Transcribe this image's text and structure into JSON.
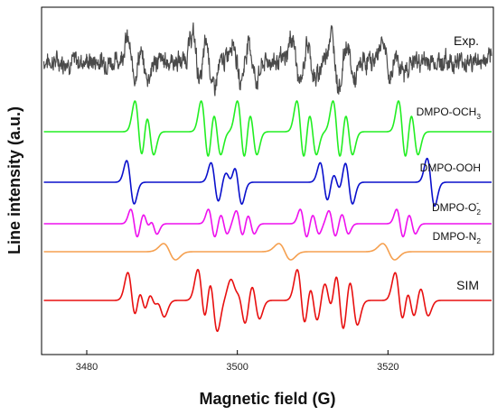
{
  "chart_data": {
    "type": "line",
    "title": "",
    "xlabel": "Magnetic field (G)",
    "ylabel": "Line intensity (a.u.)",
    "xlim": [
      3474,
      3534
    ],
    "xticks": [
      3480,
      3500,
      3520
    ],
    "xtick_labels": [
      "3480",
      "3500",
      "3520"
    ],
    "grid": false,
    "legend": "none",
    "series": [
      {
        "name": "Exp.",
        "label_sub": "",
        "color": "#4a4a4a",
        "noisy": true,
        "lines": [
          {
            "center": 3485.9,
            "width": 0.55,
            "amp": 0.8
          },
          {
            "center": 3487.5,
            "width": 0.55,
            "amp": 0.6
          },
          {
            "center": 3494.6,
            "width": 0.55,
            "amp": 1.0
          },
          {
            "center": 3496.3,
            "width": 0.55,
            "amp": 1.0
          },
          {
            "center": 3499.9,
            "width": 0.55,
            "amp": 0.8
          },
          {
            "center": 3502.0,
            "width": 0.55,
            "amp": 0.7
          },
          {
            "center": 3507.8,
            "width": 0.55,
            "amp": 0.9
          },
          {
            "center": 3509.8,
            "width": 0.55,
            "amp": 0.7
          },
          {
            "center": 3513.0,
            "width": 0.55,
            "amp": 1.0
          },
          {
            "center": 3515.0,
            "width": 0.55,
            "amp": 0.7
          },
          {
            "center": 3519.8,
            "width": 0.55,
            "amp": 0.8
          },
          {
            "center": 3521.5,
            "width": 0.55,
            "amp": 0.5
          }
        ]
      },
      {
        "name": "DMPO-OCH",
        "label_sub": "3",
        "color": "#22ee22",
        "noisy": false,
        "lines": [
          {
            "center": 3486.9,
            "width": 0.5,
            "amp": 1.0
          },
          {
            "center": 3488.4,
            "width": 0.5,
            "amp": 0.75
          },
          {
            "center": 3495.7,
            "width": 0.5,
            "amp": 1.0
          },
          {
            "center": 3497.3,
            "width": 0.5,
            "amp": 0.75
          },
          {
            "center": 3500.5,
            "width": 0.5,
            "amp": 1.0
          },
          {
            "center": 3502.1,
            "width": 0.5,
            "amp": 0.75
          },
          {
            "center": 3508.4,
            "width": 0.5,
            "amp": 1.0
          },
          {
            "center": 3510.0,
            "width": 0.5,
            "amp": 0.75
          },
          {
            "center": 3513.2,
            "width": 0.5,
            "amp": 1.0
          },
          {
            "center": 3514.8,
            "width": 0.5,
            "amp": 0.75
          },
          {
            "center": 3521.9,
            "width": 0.5,
            "amp": 1.0
          },
          {
            "center": 3523.5,
            "width": 0.5,
            "amp": 0.75
          }
        ]
      },
      {
        "name": "DMPO-OOH",
        "label_sub": "",
        "color": "#0a10cc",
        "noisy": false,
        "lines": [
          {
            "center": 3485.8,
            "width": 0.5,
            "amp": 1.0
          },
          {
            "center": 3497.0,
            "width": 0.5,
            "amp": 0.9
          },
          {
            "center": 3498.9,
            "width": 0.5,
            "amp": 0.45
          },
          {
            "center": 3500.1,
            "width": 0.5,
            "amp": 1.0
          },
          {
            "center": 3511.5,
            "width": 0.5,
            "amp": 0.9
          },
          {
            "center": 3513.2,
            "width": 0.5,
            "amp": 0.45
          },
          {
            "center": 3514.8,
            "width": 0.5,
            "amp": 1.0
          },
          {
            "center": 3525.7,
            "width": 0.5,
            "amp": 1.1
          }
        ]
      },
      {
        "name": "DMPO-O",
        "label_sub": "2",
        "label_sup": "-",
        "color": "#ee11ee",
        "noisy": false,
        "lines": [
          {
            "center": 3486.3,
            "width": 0.45,
            "amp": 1.0
          },
          {
            "center": 3487.9,
            "width": 0.45,
            "amp": 0.7
          },
          {
            "center": 3488.9,
            "width": 0.45,
            "amp": 0.7
          },
          {
            "center": 3496.6,
            "width": 0.45,
            "amp": 1.0
          },
          {
            "center": 3498.2,
            "width": 0.45,
            "amp": 0.7
          },
          {
            "center": 3500.3,
            "width": 0.45,
            "amp": 0.9
          },
          {
            "center": 3501.8,
            "width": 0.45,
            "amp": 0.7
          },
          {
            "center": 3508.8,
            "width": 0.45,
            "amp": 1.0
          },
          {
            "center": 3510.4,
            "width": 0.45,
            "amp": 0.7
          },
          {
            "center": 3512.6,
            "width": 0.45,
            "amp": 0.9
          },
          {
            "center": 3514.3,
            "width": 0.45,
            "amp": 0.7
          },
          {
            "center": 3521.6,
            "width": 0.45,
            "amp": 1.0
          },
          {
            "center": 3523.2,
            "width": 0.45,
            "amp": 0.7
          }
        ]
      },
      {
        "name": "DMPO-N",
        "label_sub": "2",
        "color": "#f5a050",
        "noisy": false,
        "lines": [
          {
            "center": 3491.0,
            "width": 0.8,
            "amp": 1.0
          },
          {
            "center": 3506.3,
            "width": 0.8,
            "amp": 1.0
          },
          {
            "center": 3520.1,
            "width": 0.8,
            "amp": 1.0
          }
        ]
      },
      {
        "name": "SIM",
        "label_sub": "",
        "color": "#e81010",
        "noisy": false,
        "lines": [
          {
            "center": 3486.0,
            "width": 0.55,
            "amp": 0.9
          },
          {
            "center": 3487.4,
            "width": 0.55,
            "amp": 0.7
          },
          {
            "center": 3488.7,
            "width": 0.55,
            "amp": 0.6
          },
          {
            "center": 3489.8,
            "width": 0.55,
            "amp": 0.5
          },
          {
            "center": 3495.3,
            "width": 0.55,
            "amp": 1.0
          },
          {
            "center": 3496.8,
            "width": 0.55,
            "amp": 1.0
          },
          {
            "center": 3499.6,
            "width": 0.55,
            "amp": 0.6
          },
          {
            "center": 3500.6,
            "width": 0.55,
            "amp": 0.8
          },
          {
            "center": 3502.4,
            "width": 0.55,
            "amp": 0.6
          },
          {
            "center": 3508.5,
            "width": 0.55,
            "amp": 1.0
          },
          {
            "center": 3510.1,
            "width": 0.55,
            "amp": 0.7
          },
          {
            "center": 3512.1,
            "width": 0.55,
            "amp": 0.6
          },
          {
            "center": 3513.6,
            "width": 0.55,
            "amp": 1.1
          },
          {
            "center": 3515.4,
            "width": 0.55,
            "amp": 0.8
          },
          {
            "center": 3521.5,
            "width": 0.55,
            "amp": 0.9
          },
          {
            "center": 3523.0,
            "width": 0.55,
            "amp": 0.6
          },
          {
            "center": 3524.8,
            "width": 0.55,
            "amp": 0.5
          }
        ]
      }
    ]
  }
}
